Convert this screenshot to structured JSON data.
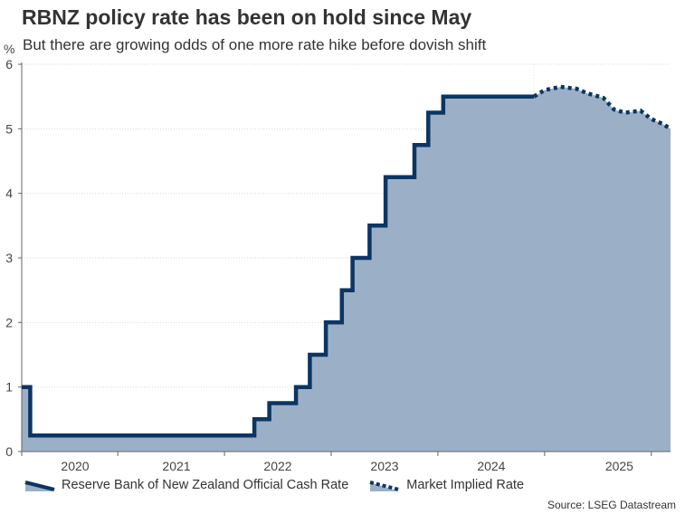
{
  "chart_data": {
    "type": "area",
    "title": "RBNZ policy rate has been on hold since May",
    "subtitle": "But there are growing odds of one more rate hike before dovish shift",
    "ylabel": "%",
    "ylim": [
      0,
      6
    ],
    "yticks": [
      0,
      1,
      2,
      3,
      4,
      5,
      6
    ],
    "xlim": [
      2019.6,
      2025.4
    ],
    "xticks": [
      2020,
      2021,
      2022,
      2023,
      2024,
      2025
    ],
    "grid": true,
    "legend_position": "bottom-left",
    "series": [
      {
        "name": "Reserve Bank of New Zealand Official Cash Rate",
        "style": "solid-step",
        "color": "#0b3563",
        "points": [
          [
            2019.6,
            1.0
          ],
          [
            2019.68,
            1.0
          ],
          [
            2019.68,
            0.25
          ],
          [
            2021.78,
            0.25
          ],
          [
            2021.78,
            0.5
          ],
          [
            2021.92,
            0.5
          ],
          [
            2021.92,
            0.75
          ],
          [
            2022.17,
            0.75
          ],
          [
            2022.17,
            1.0
          ],
          [
            2022.3,
            1.0
          ],
          [
            2022.3,
            1.5
          ],
          [
            2022.45,
            1.5
          ],
          [
            2022.45,
            2.0
          ],
          [
            2022.6,
            2.0
          ],
          [
            2022.6,
            2.5
          ],
          [
            2022.7,
            2.5
          ],
          [
            2022.7,
            3.0
          ],
          [
            2022.86,
            3.0
          ],
          [
            2022.86,
            3.5
          ],
          [
            2023.01,
            3.5
          ],
          [
            2023.01,
            4.25
          ],
          [
            2023.28,
            4.25
          ],
          [
            2023.28,
            4.75
          ],
          [
            2023.41,
            4.75
          ],
          [
            2023.41,
            5.25
          ],
          [
            2023.55,
            5.25
          ],
          [
            2023.55,
            5.5
          ],
          [
            2024.4,
            5.5
          ]
        ]
      },
      {
        "name": "Market Implied Rate",
        "style": "dotted",
        "color": "#0b3563",
        "points": [
          [
            2024.4,
            5.5
          ],
          [
            2024.5,
            5.6
          ],
          [
            2024.65,
            5.65
          ],
          [
            2024.8,
            5.62
          ],
          [
            2024.9,
            5.55
          ],
          [
            2025.05,
            5.48
          ],
          [
            2025.15,
            5.3
          ],
          [
            2025.25,
            5.25
          ],
          [
            2025.4,
            5.28
          ],
          [
            2025.5,
            5.15
          ],
          [
            2025.6,
            5.08
          ],
          [
            2025.68,
            5.0
          ]
        ]
      }
    ],
    "x_display_ticks": [
      {
        "label": "2020",
        "x": 2020.0
      },
      {
        "label": "2021",
        "x": 2021.0
      },
      {
        "label": "2022",
        "x": 2022.0
      },
      {
        "label": "2023",
        "x": 2023.0
      },
      {
        "label": "2024",
        "x": 2024.0
      },
      {
        "label": "2025",
        "x": 2025.0
      }
    ],
    "fill_color": "#9bb0c6",
    "source": "Source: LSEG Datastream"
  }
}
